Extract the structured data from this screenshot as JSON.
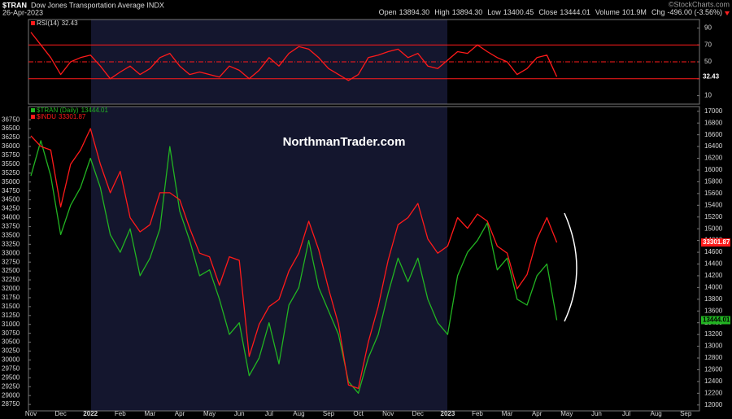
{
  "header": {
    "symbol": "$TRAN",
    "name": "Dow Jones Transportation Average INDX",
    "date": "26-Apr-2023",
    "source": "©StockCharts.com",
    "quote": [
      {
        "label": "Open",
        "value": "13894.30"
      },
      {
        "label": "High",
        "value": "13894.30"
      },
      {
        "label": "Low",
        "value": "13400.45"
      },
      {
        "label": "Close",
        "value": "13444.01"
      },
      {
        "label": "Volume",
        "value": "101.9M"
      },
      {
        "label": "Chg",
        "value": "-496.00 (-3.56%)"
      }
    ]
  },
  "watermark": "NorthmanTrader.com",
  "chart_data": [
    {
      "type": "line",
      "categories": [
        "Nov",
        null,
        null,
        "Dec",
        null,
        null,
        "2022",
        null,
        null,
        "Feb",
        null,
        null,
        "Mar",
        null,
        null,
        "Apr",
        null,
        null,
        "May",
        null,
        null,
        "Jun",
        null,
        null,
        "Jul",
        null,
        null,
        "Aug",
        null,
        null,
        "Sep",
        null,
        null,
        "Oct",
        null,
        null,
        "Nov",
        null,
        null,
        "Dec",
        null,
        null,
        "2023",
        null,
        null,
        "Feb",
        null,
        null,
        "Mar",
        null,
        null,
        "Apr",
        null,
        null,
        "May",
        null,
        null,
        "Jun",
        null,
        null,
        "Jul",
        null,
        null,
        "Aug",
        null,
        null,
        "Sep"
      ],
      "series": [
        {
          "name": "$TRAN (Daily)",
          "color": "#22b422",
          "axis": "y2",
          "values": [
            15900,
            16500,
            15900,
            14900,
            15400,
            15700,
            16200,
            15700,
            14900,
            14600,
            15000,
            14200,
            14500,
            15000,
            16400,
            15300,
            14800,
            14200,
            14300,
            13800,
            13200,
            13400,
            12500,
            12800,
            13400,
            12700,
            13700,
            14000,
            14800,
            14000,
            13600,
            13200,
            12400,
            12200,
            12800,
            13200,
            13900,
            14500,
            14100,
            14500,
            13800,
            13400,
            13200,
            14200,
            14600,
            14800,
            15100,
            14300,
            14500,
            13800,
            13700,
            14200,
            14400,
            13444.01,
            null,
            null,
            null,
            null,
            null,
            null,
            null,
            null,
            null,
            null,
            null,
            null,
            null
          ]
        },
        {
          "name": "$INDU",
          "color": "#ff1a1a",
          "values": [
            36300,
            36000,
            35900,
            34300,
            35500,
            35900,
            36500,
            35500,
            34700,
            35300,
            34000,
            33600,
            33800,
            34700,
            34700,
            34500,
            33700,
            33000,
            32900,
            32100,
            32900,
            32800,
            30100,
            31000,
            31500,
            31700,
            32500,
            33000,
            33900,
            33100,
            32000,
            31000,
            29300,
            29200,
            30500,
            31500,
            32800,
            33800,
            34000,
            34400,
            33400,
            33000,
            33200,
            34000,
            33700,
            34100,
            33900,
            33200,
            33000,
            32000,
            32400,
            33400,
            34000,
            33301.87,
            null,
            null,
            null,
            null,
            null,
            null,
            null,
            null,
            null,
            null,
            null,
            null,
            null
          ]
        }
      ],
      "ylim": [
        28570,
        37120
      ],
      "yticks": [
        28750,
        29000,
        29250,
        29500,
        29750,
        30000,
        30250,
        30500,
        30750,
        31000,
        31250,
        31500,
        31750,
        32000,
        32250,
        32500,
        32750,
        33000,
        33250,
        33500,
        33750,
        34000,
        34250,
        34500,
        34750,
        35000,
        35250,
        35500,
        35750,
        36000,
        36250,
        36500,
        36750
      ],
      "y2lim": [
        11900,
        17080
      ],
      "y2ticks": [
        12000,
        12200,
        12400,
        12600,
        12800,
        13000,
        13200,
        13400,
        13600,
        13800,
        14000,
        14200,
        14400,
        14600,
        14800,
        15000,
        15200,
        15400,
        15600,
        15800,
        16000,
        16200,
        16400,
        16600,
        16800,
        17000
      ]
    },
    {
      "type": "line",
      "series": [
        {
          "name": "RSI(14)",
          "color": "#ff1a1a",
          "values": [
            85,
            70,
            55,
            35,
            50,
            55,
            58,
            45,
            30,
            38,
            45,
            35,
            42,
            55,
            60,
            45,
            35,
            38,
            35,
            32,
            45,
            40,
            30,
            40,
            55,
            45,
            60,
            68,
            65,
            55,
            42,
            35,
            28,
            35,
            55,
            58,
            62,
            65,
            55,
            60,
            45,
            42,
            52,
            62,
            60,
            70,
            62,
            55,
            50,
            35,
            42,
            55,
            58,
            32.43,
            null,
            null,
            null,
            null,
            null,
            null,
            null,
            null,
            null,
            null,
            null,
            null,
            null
          ]
        }
      ],
      "ylim": [
        0,
        100
      ],
      "yticks": [
        10,
        30,
        50,
        70,
        90
      ],
      "reference_lines": [
        {
          "value": 70
        },
        {
          "value": 50,
          "dash": true
        },
        {
          "value": 30
        }
      ]
    }
  ]
}
